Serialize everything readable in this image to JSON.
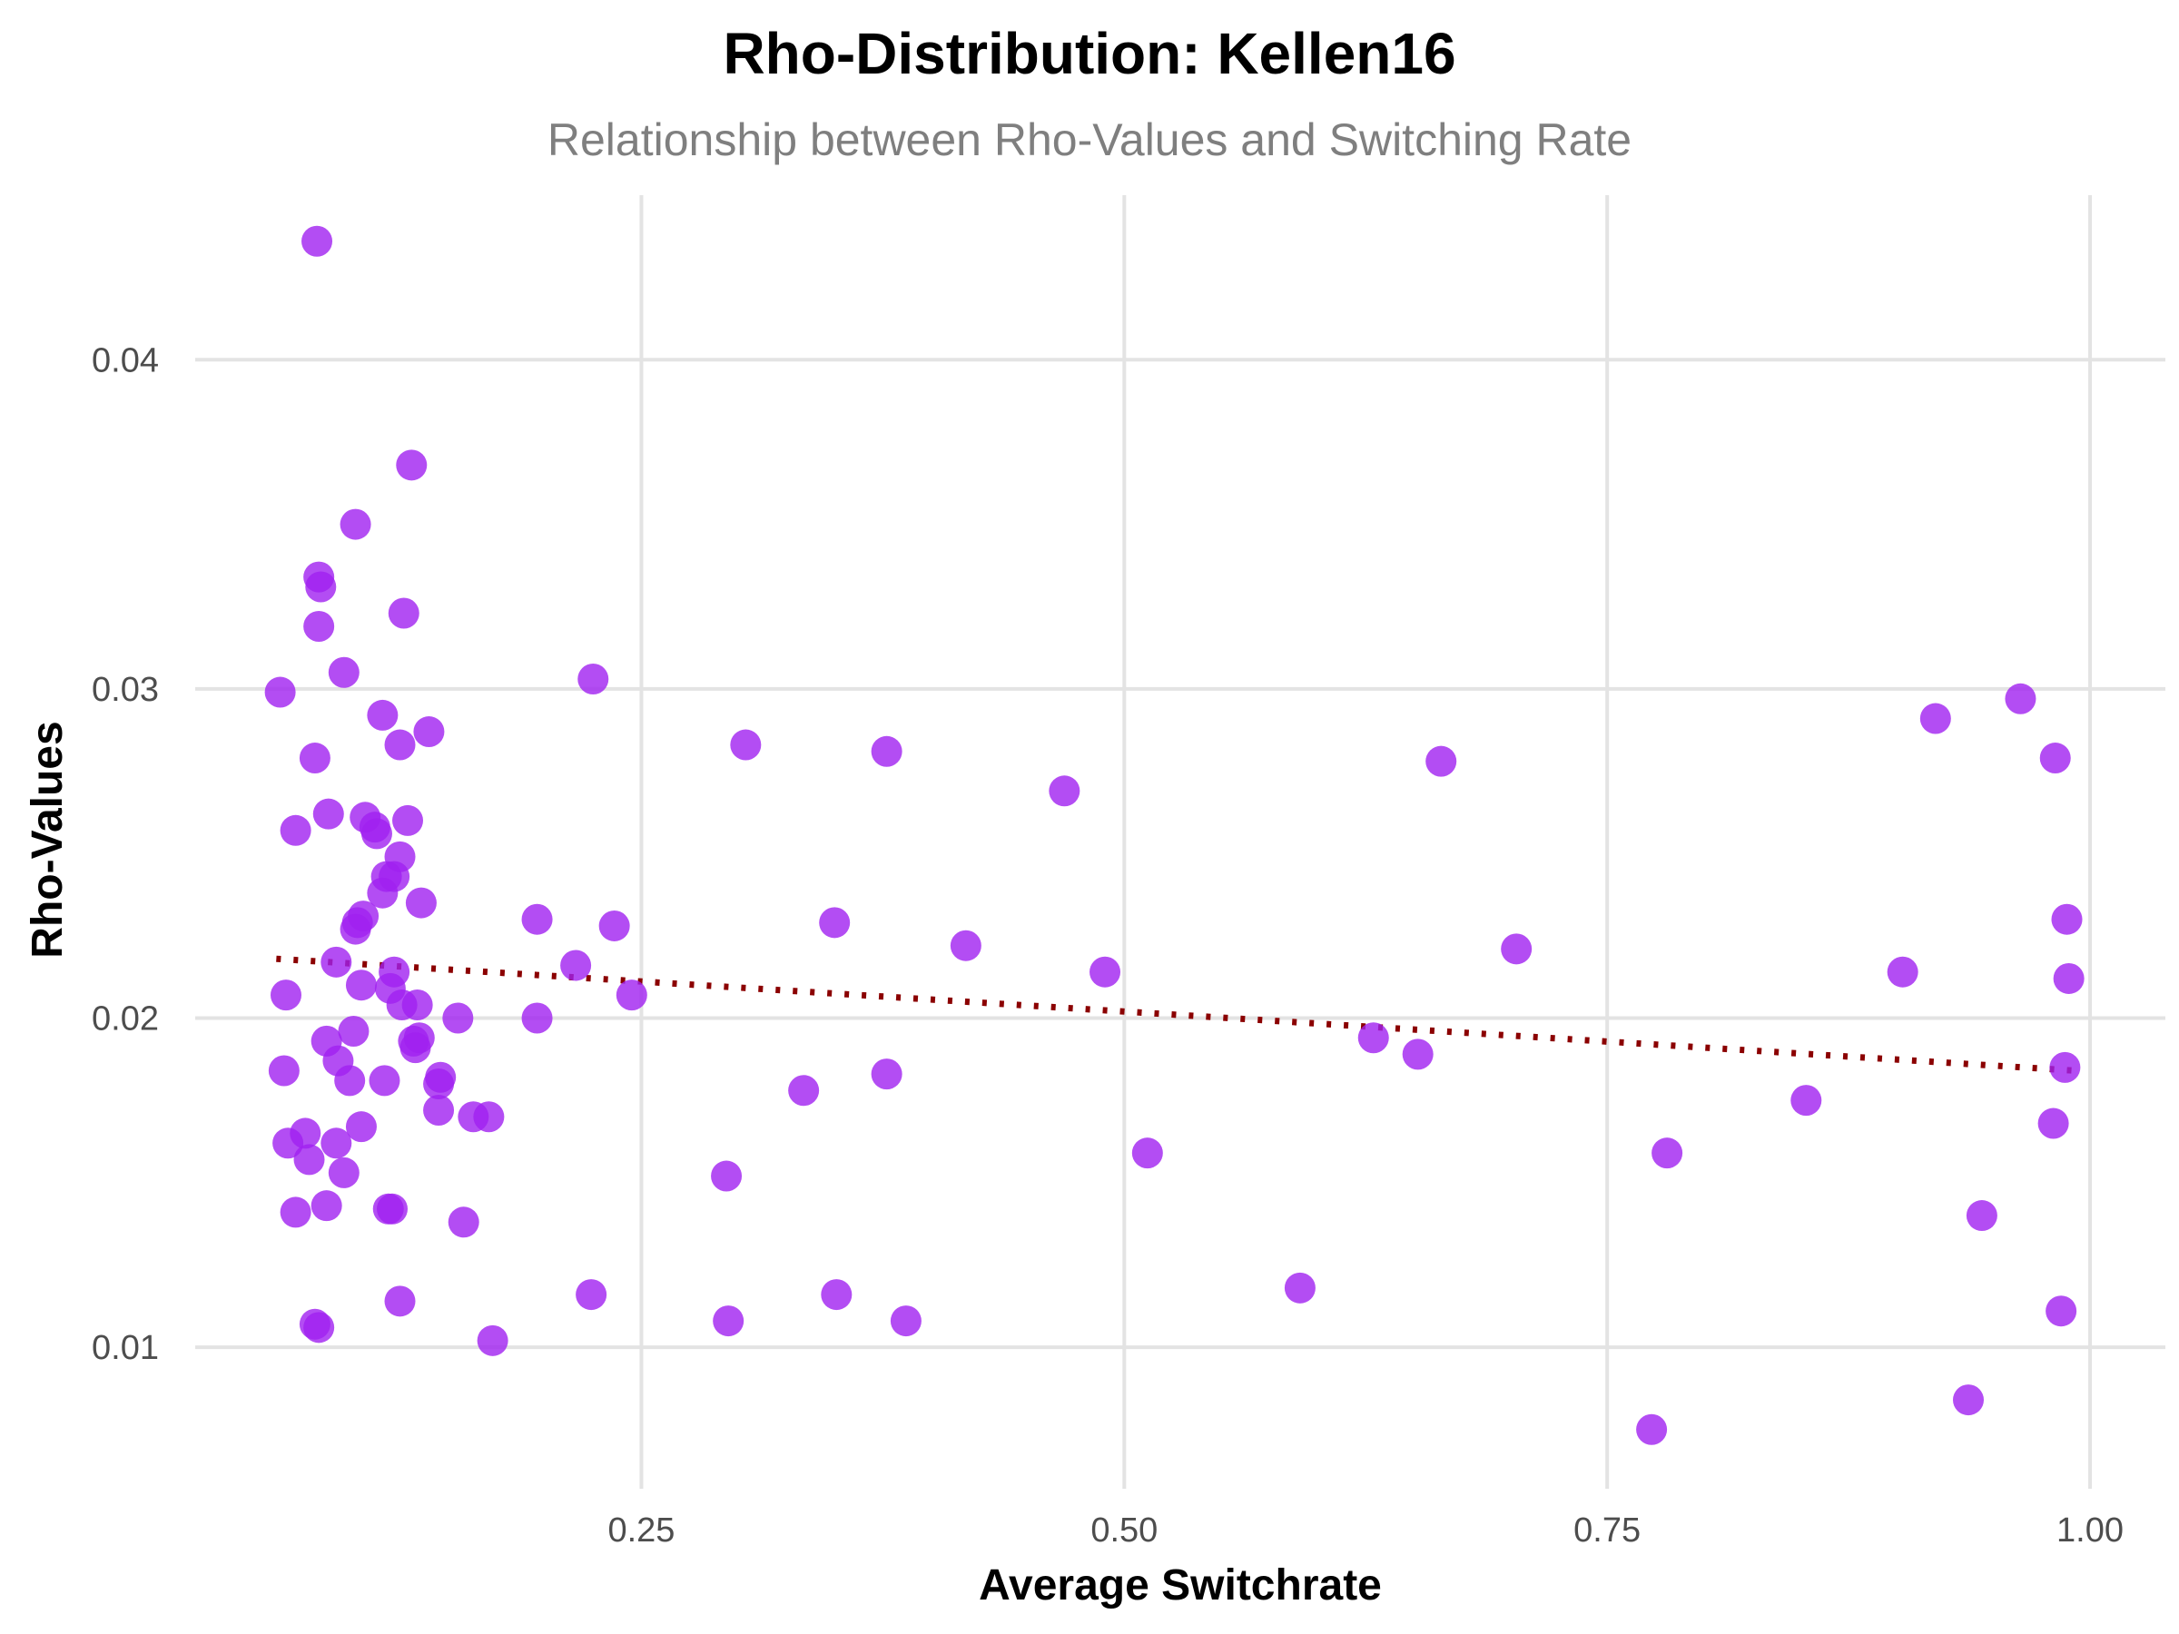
{
  "chart_data": {
    "type": "scatter",
    "title": "Rho-Distribution: Kellen16",
    "subtitle": "Relationship between Rho-Values and Switching Rate",
    "xlabel": "Average Switchrate",
    "ylabel": "Rho-Values",
    "xlim": [
      0.019,
      1.039
    ],
    "ylim": [
      0.0057,
      0.045
    ],
    "x_ticks": [
      0.25,
      0.5,
      0.75,
      1.0
    ],
    "x_tick_labels": [
      "0.25",
      "0.50",
      "0.75",
      "1.00"
    ],
    "y_ticks": [
      0.01,
      0.02,
      0.03,
      0.04
    ],
    "y_tick_labels": [
      "0.01",
      "0.02",
      "0.03",
      "0.04"
    ],
    "grid": true,
    "legend": "none",
    "point_color": "#A020F0",
    "trend_color": "#8B0000",
    "trend_line": {
      "style": "dotted",
      "x": [
        0.061,
        0.993
      ],
      "y": [
        0.0218,
        0.0184
      ]
    },
    "points": [
      [
        0.082,
        0.0436
      ],
      [
        0.131,
        0.0368
      ],
      [
        0.102,
        0.035
      ],
      [
        0.083,
        0.0334
      ],
      [
        0.084,
        0.0331
      ],
      [
        0.127,
        0.0323
      ],
      [
        0.083,
        0.0319
      ],
      [
        0.096,
        0.0305
      ],
      [
        0.063,
        0.0299
      ],
      [
        0.116,
        0.0292
      ],
      [
        0.14,
        0.0287
      ],
      [
        0.125,
        0.0283
      ],
      [
        0.081,
        0.0279
      ],
      [
        0.071,
        0.0257
      ],
      [
        0.088,
        0.0262
      ],
      [
        0.107,
        0.0261
      ],
      [
        0.112,
        0.0258
      ],
      [
        0.113,
        0.0256
      ],
      [
        0.129,
        0.026
      ],
      [
        0.125,
        0.0249
      ],
      [
        0.118,
        0.0243
      ],
      [
        0.122,
        0.0243
      ],
      [
        0.116,
        0.0238
      ],
      [
        0.136,
        0.0235
      ],
      [
        0.106,
        0.0231
      ],
      [
        0.102,
        0.0227
      ],
      [
        0.103,
        0.0229
      ],
      [
        0.092,
        0.0217
      ],
      [
        0.105,
        0.021
      ],
      [
        0.12,
        0.0209
      ],
      [
        0.122,
        0.0214
      ],
      [
        0.126,
        0.0204
      ],
      [
        0.134,
        0.0204
      ],
      [
        0.066,
        0.0207
      ],
      [
        0.101,
        0.0196
      ],
      [
        0.133,
        0.0191
      ],
      [
        0.135,
        0.0194
      ],
      [
        0.132,
        0.0193
      ],
      [
        0.087,
        0.0193
      ],
      [
        0.093,
        0.0187
      ],
      [
        0.099,
        0.0181
      ],
      [
        0.117,
        0.0181
      ],
      [
        0.145,
        0.018
      ],
      [
        0.146,
        0.0182
      ],
      [
        0.065,
        0.0184
      ],
      [
        0.145,
        0.0172
      ],
      [
        0.163,
        0.017
      ],
      [
        0.171,
        0.017
      ],
      [
        0.105,
        0.0167
      ],
      [
        0.076,
        0.0165
      ],
      [
        0.067,
        0.0162
      ],
      [
        0.092,
        0.0162
      ],
      [
        0.078,
        0.0157
      ],
      [
        0.096,
        0.0153
      ],
      [
        0.071,
        0.0141
      ],
      [
        0.087,
        0.0143
      ],
      [
        0.119,
        0.0142
      ],
      [
        0.121,
        0.0142
      ],
      [
        0.158,
        0.0138
      ],
      [
        0.125,
        0.0114
      ],
      [
        0.081,
        0.0107
      ],
      [
        0.083,
        0.0106
      ],
      [
        0.173,
        0.0102
      ],
      [
        0.155,
        0.02
      ],
      [
        0.196,
        0.023
      ],
      [
        0.196,
        0.02
      ],
      [
        0.216,
        0.0216
      ],
      [
        0.225,
        0.0303
      ],
      [
        0.236,
        0.0228
      ],
      [
        0.245,
        0.0207
      ],
      [
        0.224,
        0.0116
      ],
      [
        0.304,
        0.0283
      ],
      [
        0.377,
        0.0281
      ],
      [
        0.35,
        0.0229
      ],
      [
        0.334,
        0.0178
      ],
      [
        0.377,
        0.0183
      ],
      [
        0.294,
        0.0152
      ],
      [
        0.351,
        0.0116
      ],
      [
        0.295,
        0.0108
      ],
      [
        0.387,
        0.0108
      ],
      [
        0.418,
        0.0222
      ],
      [
        0.469,
        0.0269
      ],
      [
        0.49,
        0.0214
      ],
      [
        0.512,
        0.0159
      ],
      [
        0.591,
        0.0118
      ],
      [
        0.629,
        0.0194
      ],
      [
        0.652,
        0.0189
      ],
      [
        0.664,
        0.0278
      ],
      [
        0.703,
        0.0221
      ],
      [
        0.773,
        0.0075
      ],
      [
        0.781,
        0.0159
      ],
      [
        0.853,
        0.0175
      ],
      [
        0.903,
        0.0214
      ],
      [
        0.92,
        0.0291
      ],
      [
        0.964,
        0.0297
      ],
      [
        0.982,
        0.0279
      ],
      [
        0.988,
        0.023
      ],
      [
        0.989,
        0.0212
      ],
      [
        0.987,
        0.0185
      ],
      [
        0.981,
        0.0168
      ],
      [
        0.944,
        0.014
      ],
      [
        0.937,
        0.0084
      ],
      [
        0.985,
        0.0111
      ]
    ]
  }
}
